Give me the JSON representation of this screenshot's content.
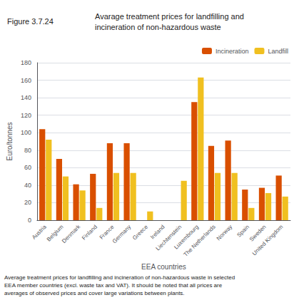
{
  "chart_data": {
    "type": "bar",
    "title": "Avarage treatment prices for landfilling and\nincineration of non-hazardous waste",
    "annotations": [
      "Figure 3.7.24",
      "Average treatment prices for landfilling and incineration of non-hazardous waste in selected\nEEA member countries (excl. waste tax and VAT). It should be noted that all prices are\naverages of observed prices and cover large variations between plants."
    ],
    "xlabel": "EEA countries",
    "ylabel": "Euro/tonnes",
    "categories": [
      "Austria",
      "Belgium",
      "Denmark",
      "Finland",
      "France",
      "Germany",
      "Greece",
      "Ireland",
      "Liechtenstein",
      "Luxembourg",
      "The Netherlands",
      "Norway",
      "Spain",
      "Sweden",
      "United Kingdom"
    ],
    "series": [
      {
        "name": "Incineration",
        "color": "#d94f00",
        "values": [
          104,
          70,
          41,
          53,
          88,
          88,
          null,
          null,
          null,
          135,
          85,
          91,
          35,
          37,
          51
        ]
      },
      {
        "name": "Landfill",
        "color": "#f0c020",
        "values": [
          92,
          50,
          34,
          14,
          54,
          54,
          10,
          null,
          45,
          163,
          54,
          54,
          14,
          31,
          27
        ]
      }
    ],
    "ylim": [
      0,
      180
    ],
    "yticks": [
      0,
      20,
      40,
      60,
      80,
      100,
      120,
      140,
      160,
      180
    ],
    "grid": true,
    "legend": "upper right"
  }
}
